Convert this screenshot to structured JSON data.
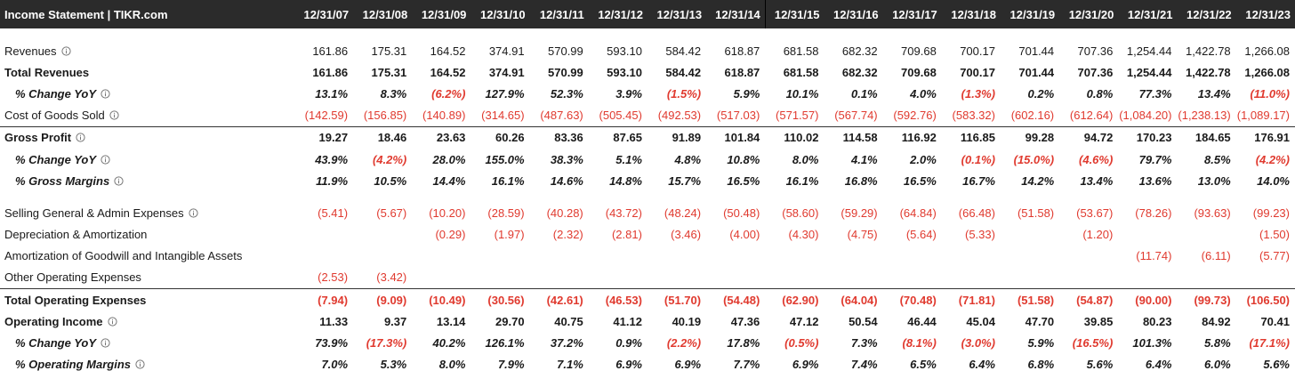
{
  "header": {
    "title": "Income Statement | TIKR.com",
    "periods": [
      "12/31/07",
      "12/31/08",
      "12/31/09",
      "12/31/10",
      "12/31/11",
      "12/31/12",
      "12/31/13",
      "12/31/14",
      "12/31/15",
      "12/31/16",
      "12/31/17",
      "12/31/18",
      "12/31/19",
      "12/31/20",
      "12/31/21",
      "12/31/22",
      "12/31/23"
    ]
  },
  "colors": {
    "negative": "#e03a2f",
    "header_bg": "#2b2b2b"
  },
  "rows": [
    {
      "key": "revenues",
      "label": "Revenues",
      "info": true,
      "style": "normal",
      "values": [
        "161.86",
        "175.31",
        "164.52",
        "374.91",
        "570.99",
        "593.10",
        "584.42",
        "618.87",
        "681.58",
        "682.32",
        "709.68",
        "700.17",
        "701.44",
        "707.36",
        "1,254.44",
        "1,422.78",
        "1,266.08"
      ]
    },
    {
      "key": "total-revenues",
      "label": "Total Revenues",
      "info": false,
      "style": "bold",
      "values": [
        "161.86",
        "175.31",
        "164.52",
        "374.91",
        "570.99",
        "593.10",
        "584.42",
        "618.87",
        "681.58",
        "682.32",
        "709.68",
        "700.17",
        "701.44",
        "707.36",
        "1,254.44",
        "1,422.78",
        "1,266.08"
      ]
    },
    {
      "key": "revenue-change-yoy",
      "label": "% Change YoY",
      "info": true,
      "style": "pct",
      "values": [
        "13.1%",
        "8.3%",
        "(6.2%)",
        "127.9%",
        "52.3%",
        "3.9%",
        "(1.5%)",
        "5.9%",
        "10.1%",
        "0.1%",
        "4.0%",
        "(1.3%)",
        "0.2%",
        "0.8%",
        "77.3%",
        "13.4%",
        "(11.0%)"
      ]
    },
    {
      "key": "cogs",
      "label": "Cost of Goods Sold",
      "info": true,
      "style": "normal",
      "values": [
        "(142.59)",
        "(156.85)",
        "(140.89)",
        "(314.65)",
        "(487.63)",
        "(505.45)",
        "(492.53)",
        "(517.03)",
        "(571.57)",
        "(567.74)",
        "(592.76)",
        "(583.32)",
        "(602.16)",
        "(612.64)",
        "(1,084.20)",
        "(1,238.13)",
        "(1,089.17)"
      ]
    },
    {
      "key": "gross-profit",
      "label": "Gross Profit",
      "info": true,
      "style": "bold",
      "topline": true,
      "values": [
        "19.27",
        "18.46",
        "23.63",
        "60.26",
        "83.36",
        "87.65",
        "91.89",
        "101.84",
        "110.02",
        "114.58",
        "116.92",
        "116.85",
        "99.28",
        "94.72",
        "170.23",
        "184.65",
        "176.91"
      ]
    },
    {
      "key": "gross-profit-change-yoy",
      "label": "% Change YoY",
      "info": true,
      "style": "pct",
      "values": [
        "43.9%",
        "(4.2%)",
        "28.0%",
        "155.0%",
        "38.3%",
        "5.1%",
        "4.8%",
        "10.8%",
        "8.0%",
        "4.1%",
        "2.0%",
        "(0.1%)",
        "(15.0%)",
        "(4.6%)",
        "79.7%",
        "8.5%",
        "(4.2%)"
      ]
    },
    {
      "key": "gross-margins",
      "label": "% Gross Margins",
      "info": true,
      "style": "pct",
      "values": [
        "11.9%",
        "10.5%",
        "14.4%",
        "16.1%",
        "14.6%",
        "14.8%",
        "15.7%",
        "16.5%",
        "16.1%",
        "16.8%",
        "16.5%",
        "16.7%",
        "14.2%",
        "13.4%",
        "13.6%",
        "13.0%",
        "14.0%"
      ]
    },
    {
      "key": "gap",
      "gap": true
    },
    {
      "key": "sga",
      "label": "Selling General & Admin Expenses",
      "info": true,
      "style": "normal",
      "values": [
        "(5.41)",
        "(5.67)",
        "(10.20)",
        "(28.59)",
        "(40.28)",
        "(43.72)",
        "(48.24)",
        "(50.48)",
        "(58.60)",
        "(59.29)",
        "(64.84)",
        "(66.48)",
        "(51.58)",
        "(53.67)",
        "(78.26)",
        "(93.63)",
        "(99.23)"
      ]
    },
    {
      "key": "dna",
      "label": "Depreciation & Amortization",
      "info": false,
      "style": "normal",
      "values": [
        "",
        "",
        "(0.29)",
        "(1.97)",
        "(2.32)",
        "(2.81)",
        "(3.46)",
        "(4.00)",
        "(4.30)",
        "(4.75)",
        "(5.64)",
        "(5.33)",
        "",
        "(1.20)",
        "",
        "",
        "(1.50)"
      ]
    },
    {
      "key": "amortization-goodwill",
      "label": "Amortization of Goodwill and Intangible Assets",
      "info": false,
      "style": "normal",
      "values": [
        "",
        "",
        "",
        "",
        "",
        "",
        "",
        "",
        "",
        "",
        "",
        "",
        "",
        "",
        "(11.74)",
        "(6.11)",
        "(5.77)"
      ]
    },
    {
      "key": "other-opex",
      "label": "Other Operating Expenses",
      "info": false,
      "style": "normal",
      "values": [
        "(2.53)",
        "(3.42)",
        "",
        "",
        "",
        "",
        "",
        "",
        "",
        "",
        "",
        "",
        "",
        "",
        "",
        "",
        ""
      ]
    },
    {
      "key": "total-opex",
      "label": "Total Operating Expenses",
      "info": false,
      "style": "bold",
      "topline": true,
      "values": [
        "(7.94)",
        "(9.09)",
        "(10.49)",
        "(30.56)",
        "(42.61)",
        "(46.53)",
        "(51.70)",
        "(54.48)",
        "(62.90)",
        "(64.04)",
        "(70.48)",
        "(71.81)",
        "(51.58)",
        "(54.87)",
        "(90.00)",
        "(99.73)",
        "(106.50)"
      ]
    },
    {
      "key": "operating-income",
      "label": "Operating Income",
      "info": true,
      "style": "bold",
      "values": [
        "11.33",
        "9.37",
        "13.14",
        "29.70",
        "40.75",
        "41.12",
        "40.19",
        "47.36",
        "47.12",
        "50.54",
        "46.44",
        "45.04",
        "47.70",
        "39.85",
        "80.23",
        "84.92",
        "70.41"
      ]
    },
    {
      "key": "operating-income-change-yoy",
      "label": "% Change YoY",
      "info": true,
      "style": "pct",
      "values": [
        "73.9%",
        "(17.3%)",
        "40.2%",
        "126.1%",
        "37.2%",
        "0.9%",
        "(2.2%)",
        "17.8%",
        "(0.5%)",
        "7.3%",
        "(8.1%)",
        "(3.0%)",
        "5.9%",
        "(16.5%)",
        "101.3%",
        "5.8%",
        "(17.1%)"
      ]
    },
    {
      "key": "operating-margins",
      "label": "% Operating Margins",
      "info": true,
      "style": "pct",
      "values": [
        "7.0%",
        "5.3%",
        "8.0%",
        "7.9%",
        "7.1%",
        "6.9%",
        "6.9%",
        "7.7%",
        "6.9%",
        "7.4%",
        "6.5%",
        "6.4%",
        "6.8%",
        "5.6%",
        "6.4%",
        "6.0%",
        "5.6%"
      ]
    }
  ]
}
